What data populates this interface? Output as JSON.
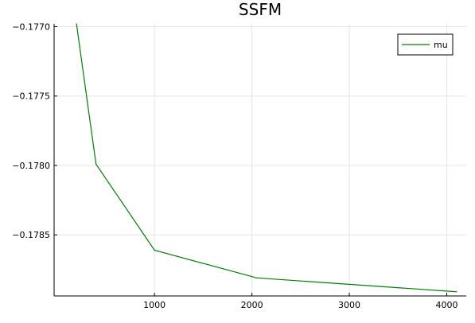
{
  "chart_data": {
    "type": "line",
    "title": "SSFM",
    "xlabel": "",
    "ylabel": "",
    "x": [
      200,
      400,
      1000,
      2050,
      4100
    ],
    "series": [
      {
        "name": "mu",
        "color": "#008000",
        "values": [
          -0.17698,
          -0.17799,
          -0.17861,
          -0.17881,
          -0.17891
        ]
      }
    ],
    "xlim": [
      -30,
      4200
    ],
    "ylim": [
      -0.17894,
      -0.17698
    ],
    "xticks": [
      1000,
      2000,
      3000,
      4000
    ],
    "xtick_labels": [
      "1000",
      "2000",
      "3000",
      "4000"
    ],
    "yticks": [
      -0.177,
      -0.1775,
      -0.178,
      -0.1785
    ],
    "ytick_labels": [
      "−0.1770",
      "−0.1775",
      "−0.1780",
      "−0.1785"
    ],
    "grid": true,
    "legend_position": "top-right",
    "colors": {
      "line": "#008000",
      "grid": "#e5e5e5",
      "axis": "#000000"
    }
  }
}
